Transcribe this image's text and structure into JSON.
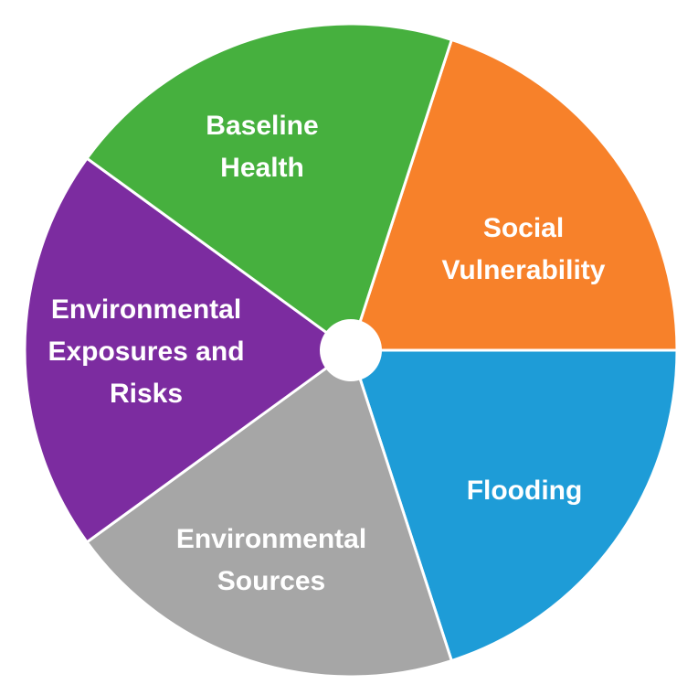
{
  "diagram": {
    "segments": [
      {
        "id": "social-vulnerability",
        "lines": [
          "Social",
          "Vulnerability"
        ],
        "color": "#F7812A"
      },
      {
        "id": "flooding",
        "lines": [
          "Flooding"
        ],
        "color": "#1E9CD7"
      },
      {
        "id": "environmental-sources",
        "lines": [
          "Environmental",
          "Sources"
        ],
        "color": "#A6A6A6"
      },
      {
        "id": "environmental-exposures-and-risks",
        "lines": [
          "Environmental",
          "Exposures and",
          "Risks"
        ],
        "color": "#7C2CA0"
      },
      {
        "id": "baseline-health",
        "lines": [
          "Baseline",
          "Health"
        ],
        "color": "#46B03E"
      }
    ],
    "divider_color": "#ffffff",
    "hub_color": "#ffffff"
  }
}
